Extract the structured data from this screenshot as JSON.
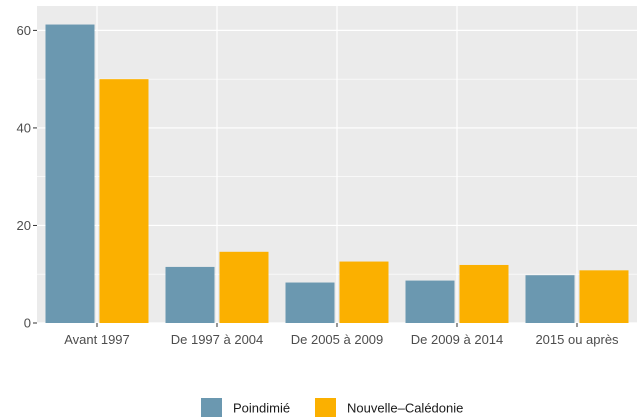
{
  "chart_data": {
    "type": "bar",
    "title": "",
    "xlabel": "",
    "ylabel": "",
    "categories": [
      "Avant 1997",
      "De 1997 à 2004",
      "De 2005 à 2009",
      "De 2009 à 2014",
      "2015 ou après"
    ],
    "series": [
      {
        "name": "Poindimié",
        "color": "#6b98b0",
        "values": [
          61.2,
          11.5,
          8.3,
          8.7,
          9.8
        ]
      },
      {
        "name": "Nouvelle–Calédonie",
        "color": "#fbb000",
        "values": [
          50.0,
          14.6,
          12.6,
          11.9,
          10.8
        ]
      }
    ],
    "ylim": [
      0,
      65
    ],
    "yticks": [
      0,
      20,
      40,
      60
    ],
    "grid": true,
    "legend_position": "bottom",
    "panel_background": "#ebebeb",
    "grid_color": "#ffffff"
  }
}
